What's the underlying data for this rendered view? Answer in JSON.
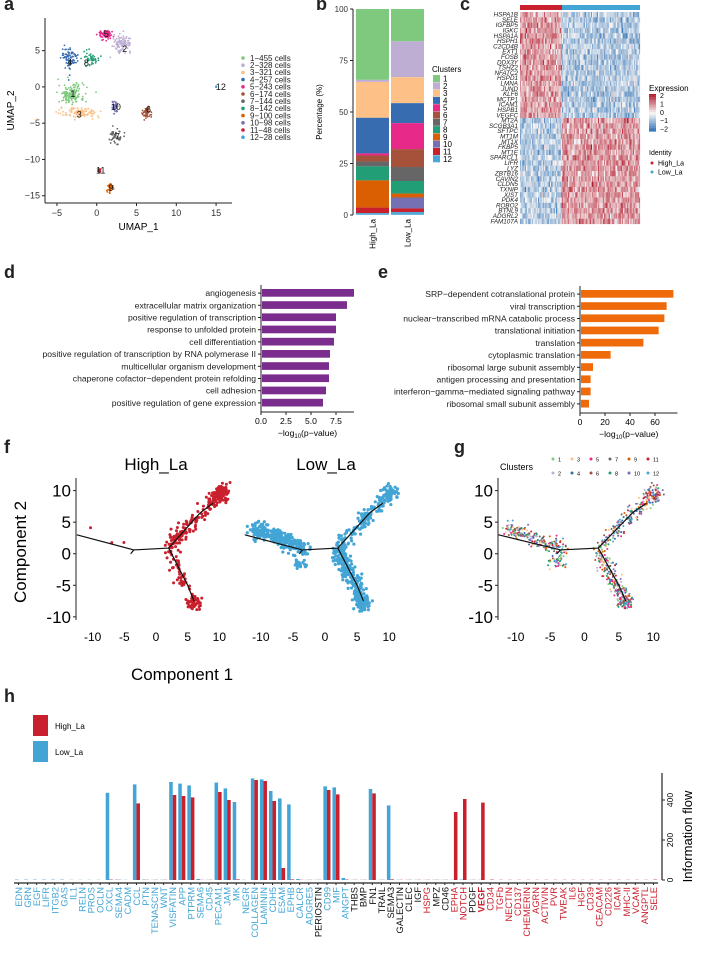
{
  "panel_letters": {
    "a": "a",
    "b": "b",
    "c": "c",
    "d": "d",
    "e": "e",
    "f": "f",
    "g": "g",
    "h": "h"
  },
  "cluster_colors": [
    "#7fc97f",
    "#beaed4",
    "#fdc086",
    "#386cb0",
    "#e7298a",
    "#a6523a",
    "#666666",
    "#229e77",
    "#d95f02",
    "#7570b3",
    "#c9202e",
    "#4aa6d8"
  ],
  "group_colors": {
    "High_La": "#c9202e",
    "Low_La": "#42a5d5"
  },
  "chart_data": [
    {
      "id": "a",
      "type": "scatter",
      "title": "",
      "xlabel": "UMAP_1",
      "ylabel": "UMAP_2",
      "xlim": [
        -6.5,
        17
      ],
      "ylim": [
        -16,
        9.5
      ],
      "xticks": [
        -5,
        0,
        5,
        10,
        15
      ],
      "yticks": [
        -15,
        -10,
        -5,
        0,
        5
      ],
      "legend": [
        "1−455  cells",
        "2−328  cells",
        "3−321  cells",
        "4−257  cells",
        "5−243  cells",
        "6−174  cells",
        "7−144  cells",
        "8−142  cells",
        "9−100  cells",
        "10−98  cells",
        "11−48  cells",
        "12−28  cells"
      ],
      "legend_position": "right",
      "clusters": [
        {
          "id": "1",
          "label_xy": [
            -3,
            -1
          ],
          "center": [
            -3.2,
            -1
          ],
          "spread": [
            1.6,
            1.4
          ],
          "n": 455
        },
        {
          "id": "2",
          "label_xy": [
            3.5,
            5.2
          ],
          "center": [
            3.2,
            6
          ],
          "spread": [
            1.1,
            1.1
          ],
          "n": 328
        },
        {
          "id": "3",
          "label_xy": [
            -2.2,
            -3.8
          ],
          "center": [
            -2,
            -3.6
          ],
          "spread": [
            2.6,
            0.7
          ],
          "n": 321
        },
        {
          "id": "4",
          "label_xy": [
            -3.4,
            3.4
          ],
          "center": [
            -3.4,
            4
          ],
          "spread": [
            1,
            1.5
          ],
          "n": 257
        },
        {
          "id": "5",
          "label_xy": [
            1.2,
            7.3
          ],
          "center": [
            1.1,
            7.2
          ],
          "spread": [
            0.9,
            0.7
          ],
          "n": 243
        },
        {
          "id": "6",
          "label_xy": [
            6.5,
            -3.1
          ],
          "center": [
            6.3,
            -3.5
          ],
          "spread": [
            0.5,
            0.8
          ],
          "n": 174
        },
        {
          "id": "7",
          "label_xy": [
            2.6,
            -6.8
          ],
          "center": [
            2.4,
            -6.8
          ],
          "spread": [
            0.8,
            1
          ],
          "n": 144
        },
        {
          "id": "8",
          "label_xy": [
            -1.3,
            3.3
          ],
          "center": [
            -0.8,
            4
          ],
          "spread": [
            1,
            1
          ],
          "n": 142
        },
        {
          "id": "9",
          "label_xy": [
            1.8,
            -13.9
          ],
          "center": [
            1.7,
            -13.9
          ],
          "spread": [
            0.35,
            0.7
          ],
          "n": 100
        },
        {
          "id": "10",
          "label_xy": [
            2.4,
            -2.8
          ],
          "center": [
            2.3,
            -2.8
          ],
          "spread": [
            0.35,
            0.9
          ],
          "n": 98
        },
        {
          "id": "11",
          "label_xy": [
            0.5,
            -11.5
          ],
          "center": [
            0.3,
            -11.5
          ],
          "spread": [
            0.2,
            0.3
          ],
          "n": 48
        },
        {
          "id": "12",
          "label_xy": [
            15.6,
            0
          ],
          "center": [
            15,
            0
          ],
          "spread": [
            0.05,
            0.1
          ],
          "n": 28
        }
      ]
    },
    {
      "id": "b",
      "type": "bar",
      "stacked": true,
      "categories": [
        "High_La",
        "Low_La"
      ],
      "ylabel": "Percentage (%)",
      "ylim": [
        0,
        100
      ],
      "yticks": [
        0,
        25,
        50,
        75,
        100
      ],
      "legend_title": "Clusters",
      "legend_position": "right",
      "series": [
        {
          "name": "1",
          "values": [
            34.4,
            15.7
          ]
        },
        {
          "name": "2",
          "values": [
            1.0,
            17.4
          ]
        },
        {
          "name": "3",
          "values": [
            17.4,
            12.6
          ]
        },
        {
          "name": "4",
          "values": [
            17.3,
            9.7
          ]
        },
        {
          "name": "5",
          "values": [
            1.0,
            12.6
          ]
        },
        {
          "name": "6",
          "values": [
            2.9,
            8.7
          ]
        },
        {
          "name": "7",
          "values": [
            2.4,
            6.8
          ]
        },
        {
          "name": "8",
          "values": [
            6.8,
            6.1
          ]
        },
        {
          "name": "9",
          "values": [
            13.2,
            1.9
          ]
        },
        {
          "name": "10",
          "values": [
            0.0,
            5.3
          ]
        },
        {
          "name": "11",
          "values": [
            2.7,
            1.8
          ]
        },
        {
          "name": "12",
          "values": [
            0.8,
            1.3
          ]
        }
      ]
    },
    {
      "id": "c",
      "type": "heatmap",
      "genes": [
        "HSPA1B",
        "SELE",
        "IGFBP5",
        "IGKC",
        "HSPA1A",
        "HSPH1",
        "C2CD4B",
        "EXT1",
        "FOSB",
        "DDX3Y",
        "TSHZ2",
        "NFATC2",
        "HSPD1",
        "LMNA",
        "JUND",
        "KLF6",
        "MCTP1",
        "ICAM1",
        "HSPB1",
        "VEGFC",
        "MT2A",
        "SCGB3A1",
        "SFTPC",
        "MT1M",
        "MT1X",
        "FKBP5",
        "MT1E",
        "SPARCL1",
        "LIFR",
        "LYZ",
        "ZBTB16",
        "CAVIN2",
        "CLDN5",
        "TXNIP",
        "XIST",
        "PDK4",
        "ROBO2",
        "BTNL9",
        "ADGRL2",
        "FAM107A"
      ],
      "up_in_high_count": 20,
      "groups": [
        "High_La",
        "Low_La"
      ],
      "legend_title": "Expression",
      "legend_ticks": [
        2,
        1,
        0,
        -1,
        -2
      ],
      "identity_title": "Identity",
      "identity_labels": [
        "High_La",
        "Low_La"
      ]
    },
    {
      "id": "d",
      "type": "bar",
      "orientation": "horizontal",
      "color": "#7b2d8e",
      "categories": [
        "angiogenesis",
        "extracellular matrix organization",
        "positive regulation of transcription",
        "response to unfolded protein",
        "cell differentiation",
        "positive regulation of transcription by  RNA polymerase II",
        "multicellular organism development",
        "chaperone cofactor−dependent protein  refolding",
        "cell adhesion",
        "positive regulation of gene expression"
      ],
      "values": [
        9.2,
        8.5,
        7.4,
        7.4,
        7.2,
        6.8,
        6.7,
        6.7,
        6.4,
        6.1
      ],
      "xlabel": "−log10(p−value)",
      "xlim": [
        0,
        9.3
      ],
      "xticks": [
        "0.0",
        "2.5",
        "5.0",
        "7.5"
      ]
    },
    {
      "id": "e",
      "type": "bar",
      "orientation": "horizontal",
      "color": "#ee6a0a",
      "categories": [
        "SRP−dependent cotranslational protein",
        "viral transcription",
        "nuclear−transcribed mRNA catabolic process",
        "translational initiation",
        "translation",
        "cytoplasmic translation",
        "ribosomal large subunit assembly",
        "antigen processing and presentation",
        "interferon−gamma−mediated signaling pathway",
        "ribosomal small subunit assembly"
      ],
      "values": [
        73.9,
        68.5,
        66.7,
        62.1,
        49.9,
        23.7,
        9.6,
        7.7,
        7.7,
        6.4
      ],
      "xlabel": "−log10(p−value)",
      "xlim": [
        0,
        78
      ],
      "xticks": [
        "0",
        "20",
        "40",
        "60"
      ]
    },
    {
      "id": "f",
      "type": "scatter",
      "subplots": [
        "High_La",
        "Low_La"
      ],
      "xlabel": "Component 1",
      "ylabel": "Component 2",
      "xlim": [
        -12,
        12
      ],
      "ylim": [
        -10.5,
        12
      ],
      "xticks": [
        -10,
        -5,
        0,
        5,
        10
      ],
      "yticks": [
        -10,
        -5,
        0,
        5,
        10
      ],
      "trajectory": [
        [
          [
            -12.5,
            3
          ],
          [
            -3.5,
            0.6
          ],
          [
            -4,
            0
          ],
          [
            -3.5,
            0.6
          ],
          [
            2,
            0.9
          ],
          [
            7,
            6.5
          ],
          [
            9,
            8
          ]
        ],
        [
          [
            2,
            0.9
          ],
          [
            5,
            -5
          ],
          [
            6,
            -7.5
          ]
        ]
      ]
    },
    {
      "id": "g",
      "type": "scatter",
      "xlim": [
        -12,
        12
      ],
      "ylim": [
        -10.5,
        12
      ],
      "xticks": [
        -10,
        -5,
        0,
        5,
        10
      ],
      "yticks": [
        -10,
        -5,
        0,
        5,
        10
      ],
      "legend_title": "Clusters",
      "legend": [
        "1",
        "2",
        "3",
        "4",
        "5",
        "6",
        "7",
        "8",
        "9",
        "10",
        "11",
        "12"
      ],
      "legend_position": "top"
    },
    {
      "id": "h",
      "type": "bar",
      "ylabel": "Information flow",
      "ylim": [
        0,
        535
      ],
      "yticks": [
        0,
        200,
        400
      ],
      "legend": [
        "High_La",
        "Low_La"
      ],
      "legend_position": "top-left",
      "categories": [
        {
          "name": "EDN",
          "low": 2,
          "high": 0,
          "color": "blue"
        },
        {
          "name": "GRN",
          "low": 2,
          "high": 0,
          "color": "blue"
        },
        {
          "name": "EGF",
          "low": 2,
          "high": 0,
          "color": "blue"
        },
        {
          "name": "LIFR",
          "low": 2,
          "high": 0,
          "color": "blue"
        },
        {
          "name": "ITGB2",
          "low": 2,
          "high": 0,
          "color": "blue"
        },
        {
          "name": "GAS",
          "low": 2,
          "high": 0,
          "color": "blue"
        },
        {
          "name": "IL1",
          "low": 1,
          "high": 0,
          "color": "blue"
        },
        {
          "name": "RELN",
          "low": 1,
          "high": 0,
          "color": "blue"
        },
        {
          "name": "PROS",
          "low": 1,
          "high": 0,
          "color": "blue"
        },
        {
          "name": "OCLN",
          "low": 1,
          "high": 0,
          "color": "blue"
        },
        {
          "name": "CXCL",
          "low": 436,
          "high": 2,
          "color": "blue"
        },
        {
          "name": "SEMA4",
          "low": 2,
          "high": 1,
          "color": "blue"
        },
        {
          "name": "CADM",
          "low": 1,
          "high": 0,
          "color": "blue"
        },
        {
          "name": "CCL",
          "low": 478,
          "high": 383,
          "color": "blue"
        },
        {
          "name": "PTN",
          "low": 2,
          "high": 1,
          "color": "blue"
        },
        {
          "name": "TENASCIN",
          "low": 1,
          "high": 1,
          "color": "blue"
        },
        {
          "name": "WNT",
          "low": 1,
          "high": 1,
          "color": "blue"
        },
        {
          "name": "VISFATIN",
          "low": 490,
          "high": 425,
          "color": "blue"
        },
        {
          "name": "APP",
          "low": 482,
          "high": 420,
          "color": "blue"
        },
        {
          "name": "PTPRM",
          "low": 473,
          "high": 413,
          "color": "blue"
        },
        {
          "name": "SEMA6",
          "low": 5,
          "high": 1,
          "color": "blue"
        },
        {
          "name": "CD45",
          "low": 1,
          "high": 1,
          "color": "blue"
        },
        {
          "name": "PECAM1",
          "low": 487,
          "high": 440,
          "color": "blue"
        },
        {
          "name": "JAM",
          "low": 458,
          "high": 400,
          "color": "blue"
        },
        {
          "name": "MK",
          "low": 390,
          "high": 3,
          "color": "blue"
        },
        {
          "name": "NEGR",
          "low": 1,
          "high": 0,
          "color": "blue"
        },
        {
          "name": "COLLAGEN",
          "low": 508,
          "high": 500,
          "color": "blue"
        },
        {
          "name": "LAMININ",
          "low": 503,
          "high": 495,
          "color": "blue"
        },
        {
          "name": "CDH5",
          "low": 445,
          "high": 395,
          "color": "blue"
        },
        {
          "name": "ESAM",
          "low": 408,
          "high": 60,
          "color": "blue"
        },
        {
          "name": "EPHB",
          "low": 378,
          "high": 3,
          "color": "blue"
        },
        {
          "name": "CALCR",
          "low": 5,
          "high": 1,
          "color": "blue"
        },
        {
          "name": "ADGRE5",
          "low": 1,
          "high": 1,
          "color": "blue"
        },
        {
          "name": "PERIOSTIN",
          "low": 1,
          "high": 1,
          "color": "black"
        },
        {
          "name": "CD99",
          "low": 468,
          "high": 450,
          "color": "blue"
        },
        {
          "name": "MIF",
          "low": 463,
          "high": 428,
          "color": "blue"
        },
        {
          "name": "ANGPT",
          "low": 10,
          "high": 2,
          "color": "blue"
        },
        {
          "name": "THBS",
          "low": 1,
          "high": 1,
          "color": "black"
        },
        {
          "name": "BMP",
          "low": 1,
          "high": 1,
          "color": "black"
        },
        {
          "name": "FN1",
          "low": 455,
          "high": 433,
          "color": "black"
        },
        {
          "name": "TRAIL",
          "low": 1,
          "high": 1,
          "color": "black"
        },
        {
          "name": "SEMA3",
          "low": 373,
          "high": 3,
          "color": "black"
        },
        {
          "name": "GALECTIN",
          "low": 1,
          "high": 1,
          "color": "black"
        },
        {
          "name": "CLEC",
          "low": 1,
          "high": 1,
          "color": "black"
        },
        {
          "name": "IGF",
          "low": 1,
          "high": 1,
          "color": "black"
        },
        {
          "name": "HSPG",
          "low": 1,
          "high": 1,
          "color": "red"
        },
        {
          "name": "MPZ",
          "low": 1,
          "high": 1,
          "color": "black"
        },
        {
          "name": "CD46",
          "low": 1,
          "high": 1,
          "color": "black"
        },
        {
          "name": "EPHA",
          "low": 1,
          "high": 340,
          "color": "red"
        },
        {
          "name": "NOTCH",
          "low": 2,
          "high": 405,
          "color": "red"
        },
        {
          "name": "PDGF",
          "low": 1,
          "high": 1,
          "color": "black"
        },
        {
          "name": "VEGF",
          "low": 1,
          "high": 387,
          "color": "red",
          "bold": true
        },
        {
          "name": "CD34",
          "low": 0,
          "high": 2,
          "color": "red"
        },
        {
          "name": "TGFb",
          "low": 0,
          "high": 1,
          "color": "red"
        },
        {
          "name": "NECTIN",
          "low": 0,
          "high": 1,
          "color": "red"
        },
        {
          "name": "CD137",
          "low": 0,
          "high": 1,
          "color": "red"
        },
        {
          "name": "CHEMERIN",
          "low": 0,
          "high": 1,
          "color": "red"
        },
        {
          "name": "AGRN",
          "low": 0,
          "high": 1,
          "color": "red"
        },
        {
          "name": "ACTIVIN",
          "low": 0,
          "high": 1,
          "color": "red"
        },
        {
          "name": "PVR",
          "low": 0,
          "high": 1,
          "color": "red"
        },
        {
          "name": "TWEAK",
          "low": 0,
          "high": 1,
          "color": "red"
        },
        {
          "name": "IL6",
          "low": 0,
          "high": 1,
          "color": "red"
        },
        {
          "name": "HGF",
          "low": 0,
          "high": 1,
          "color": "red"
        },
        {
          "name": "CD39",
          "low": 0,
          "high": 1,
          "color": "red"
        },
        {
          "name": "CEACAM",
          "low": 0,
          "high": 1,
          "color": "red"
        },
        {
          "name": "CD226",
          "low": 0,
          "high": 1,
          "color": "red"
        },
        {
          "name": "ICAM",
          "low": 0,
          "high": 1,
          "color": "red"
        },
        {
          "name": "MHC-II",
          "low": 0,
          "high": 1,
          "color": "red"
        },
        {
          "name": "VCAM",
          "low": 0,
          "high": 1,
          "color": "red"
        },
        {
          "name": "ANGPTL",
          "low": 0,
          "high": 1,
          "color": "red"
        },
        {
          "name": "SELE",
          "low": 0,
          "high": 2,
          "color": "red"
        }
      ]
    }
  ]
}
